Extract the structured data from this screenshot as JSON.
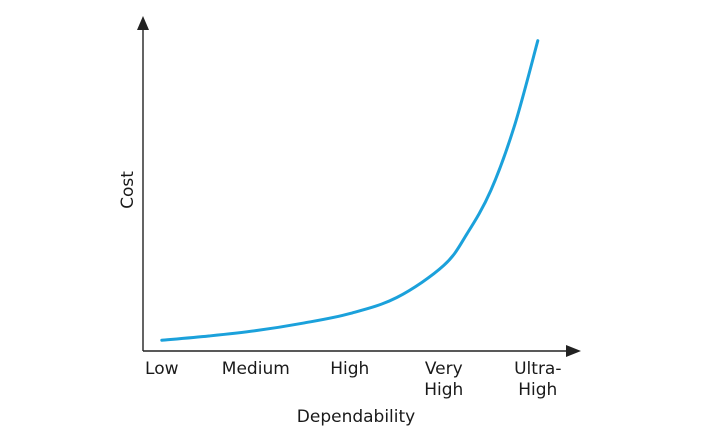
{
  "chart_data": {
    "type": "line",
    "title": "",
    "xlabel": "Dependability",
    "ylabel": "Cost",
    "categories": [
      [
        "Low"
      ],
      [
        "Medium"
      ],
      [
        "High"
      ],
      [
        "Very",
        "High"
      ],
      [
        "Ultra-",
        "High"
      ]
    ],
    "series": [
      {
        "color": "#1BA1DB",
        "x": [
          0,
          0.5,
          1,
          1.5,
          2,
          2.5,
          3,
          3.25,
          3.5,
          3.75,
          4
        ],
        "values": [
          1.0,
          1.4,
          1.9,
          2.6,
          3.5,
          5.0,
          8.0,
          11.0,
          15.0,
          21.0,
          29.0
        ]
      }
    ],
    "xlim": [
      -0.2,
      4.3
    ],
    "ylim": [
      0,
      30
    ],
    "grid": false,
    "legend": "none",
    "y_ticks_shown": false
  }
}
